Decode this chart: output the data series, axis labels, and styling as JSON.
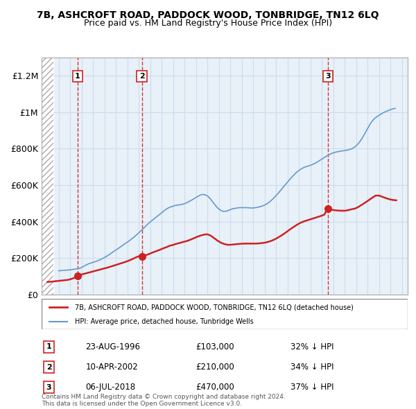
{
  "title": "7B, ASHCROFT ROAD, PADDOCK WOOD, TONBRIDGE, TN12 6LQ",
  "subtitle": "Price paid vs. HM Land Registry's House Price Index (HPI)",
  "hpi_label": "HPI: Average price, detached house, Tunbridge Wells",
  "price_label": "7B, ASHCROFT ROAD, PADDOCK WOOD, TONBRIDGE, TN12 6LQ (detached house)",
  "copyright": "Contains HM Land Registry data © Crown copyright and database right 2024.\nThis data is licensed under the Open Government Licence v3.0.",
  "transactions": [
    {
      "num": 1,
      "date": "23-AUG-1996",
      "year": 1996.64,
      "price": 103000,
      "pct": "32%",
      "dir": "↓"
    },
    {
      "num": 2,
      "date": "10-APR-2002",
      "year": 2002.27,
      "price": 210000,
      "pct": "34%",
      "dir": "↓"
    },
    {
      "num": 3,
      "date": "06-JUL-2018",
      "year": 2018.51,
      "price": 470000,
      "pct": "37%",
      "dir": "↓"
    }
  ],
  "hpi_color": "#6699cc",
  "price_color": "#cc2222",
  "hatch_color": "#cccccc",
  "grid_color": "#ccddee",
  "vline_color": "#cc2222",
  "bg_color": "#e8f0f8",
  "ylim": [
    0,
    1300000
  ],
  "xmin": 1993.5,
  "xmax": 2025.5,
  "hatch_xmax": 1994.5,
  "yticks": [
    0,
    200000,
    400000,
    600000,
    800000,
    1000000,
    1200000
  ],
  "ytick_labels": [
    "£0",
    "£200K",
    "£400K",
    "£600K",
    "£800K",
    "£1M",
    "£1.2M"
  ],
  "hpi_x": [
    1995.0,
    1995.2,
    1995.4,
    1995.6,
    1995.8,
    1996.0,
    1996.2,
    1996.4,
    1996.6,
    1996.8,
    1997.0,
    1997.2,
    1997.4,
    1997.6,
    1997.8,
    1998.0,
    1998.2,
    1998.4,
    1998.6,
    1998.8,
    1999.0,
    1999.2,
    1999.4,
    1999.6,
    1999.8,
    2000.0,
    2000.2,
    2000.4,
    2000.6,
    2000.8,
    2001.0,
    2001.2,
    2001.4,
    2001.6,
    2001.8,
    2002.0,
    2002.2,
    2002.4,
    2002.6,
    2002.8,
    2003.0,
    2003.2,
    2003.4,
    2003.6,
    2003.8,
    2004.0,
    2004.2,
    2004.4,
    2004.6,
    2004.8,
    2005.0,
    2005.2,
    2005.4,
    2005.6,
    2005.8,
    2006.0,
    2006.2,
    2006.4,
    2006.6,
    2006.8,
    2007.0,
    2007.2,
    2007.4,
    2007.6,
    2007.8,
    2008.0,
    2008.2,
    2008.4,
    2008.6,
    2008.8,
    2009.0,
    2009.2,
    2009.4,
    2009.6,
    2009.8,
    2010.0,
    2010.2,
    2010.4,
    2010.6,
    2010.8,
    2011.0,
    2011.2,
    2011.4,
    2011.6,
    2011.8,
    2012.0,
    2012.2,
    2012.4,
    2012.6,
    2012.8,
    2013.0,
    2013.2,
    2013.4,
    2013.6,
    2013.8,
    2014.0,
    2014.2,
    2014.4,
    2014.6,
    2014.8,
    2015.0,
    2015.2,
    2015.4,
    2015.6,
    2015.8,
    2016.0,
    2016.2,
    2016.4,
    2016.6,
    2016.8,
    2017.0,
    2017.2,
    2017.4,
    2017.6,
    2017.8,
    2018.0,
    2018.2,
    2018.4,
    2018.6,
    2018.8,
    2019.0,
    2019.2,
    2019.4,
    2019.6,
    2019.8,
    2020.0,
    2020.2,
    2020.4,
    2020.6,
    2020.8,
    2021.0,
    2021.2,
    2021.4,
    2021.6,
    2021.8,
    2022.0,
    2022.2,
    2022.4,
    2022.6,
    2022.8,
    2023.0,
    2023.2,
    2023.4,
    2023.6,
    2023.8,
    2024.0,
    2024.2,
    2024.4
  ],
  "hpi_y": [
    130000,
    131000,
    132000,
    133000,
    134000,
    135000,
    137000,
    139000,
    141000,
    143000,
    148000,
    155000,
    162000,
    168000,
    172000,
    176000,
    180000,
    185000,
    190000,
    196000,
    203000,
    210000,
    218000,
    227000,
    236000,
    244000,
    252000,
    261000,
    270000,
    279000,
    287000,
    296000,
    306000,
    316000,
    327000,
    338000,
    350000,
    362000,
    374000,
    387000,
    398000,
    408000,
    418000,
    428000,
    438000,
    448000,
    458000,
    468000,
    475000,
    480000,
    484000,
    488000,
    490000,
    492000,
    494000,
    498000,
    503000,
    510000,
    517000,
    524000,
    532000,
    539000,
    546000,
    548000,
    546000,
    540000,
    528000,
    512000,
    496000,
    480000,
    468000,
    460000,
    455000,
    456000,
    460000,
    465000,
    470000,
    472000,
    474000,
    476000,
    476000,
    476000,
    476000,
    475000,
    474000,
    474000,
    476000,
    478000,
    481000,
    485000,
    490000,
    497000,
    506000,
    517000,
    529000,
    542000,
    556000,
    571000,
    586000,
    601000,
    616000,
    631000,
    645000,
    658000,
    670000,
    680000,
    688000,
    695000,
    700000,
    704000,
    708000,
    713000,
    719000,
    726000,
    734000,
    742000,
    750000,
    758000,
    765000,
    771000,
    776000,
    780000,
    783000,
    785000,
    787000,
    789000,
    791000,
    794000,
    798000,
    805000,
    815000,
    828000,
    845000,
    865000,
    887000,
    910000,
    932000,
    950000,
    964000,
    974000,
    982000,
    990000,
    997000,
    1003000,
    1008000,
    1013000,
    1017000,
    1020000
  ],
  "price_x": [
    1994.0,
    1994.3,
    1994.6,
    1994.9,
    1995.2,
    1995.5,
    1995.8,
    1996.1,
    1996.4,
    1996.64,
    1996.9,
    1997.2,
    1997.5,
    1997.8,
    1998.1,
    1998.4,
    1998.7,
    1999.0,
    1999.3,
    1999.6,
    1999.9,
    2000.2,
    2000.5,
    2000.8,
    2001.1,
    2001.4,
    2001.7,
    2002.0,
    2002.27,
    2002.6,
    2002.9,
    2003.2,
    2003.5,
    2003.8,
    2004.1,
    2004.4,
    2004.7,
    2005.0,
    2005.3,
    2005.6,
    2005.9,
    2006.2,
    2006.5,
    2006.8,
    2007.1,
    2007.4,
    2007.7,
    2008.0,
    2008.3,
    2008.6,
    2008.9,
    2009.2,
    2009.5,
    2009.8,
    2010.1,
    2010.4,
    2010.7,
    2011.0,
    2011.3,
    2011.6,
    2011.9,
    2012.2,
    2012.5,
    2012.8,
    2013.1,
    2013.4,
    2013.7,
    2014.0,
    2014.3,
    2014.6,
    2014.9,
    2015.2,
    2015.5,
    2015.8,
    2016.1,
    2016.4,
    2016.7,
    2017.0,
    2017.3,
    2017.6,
    2017.9,
    2018.2,
    2018.51,
    2018.8,
    2019.1,
    2019.4,
    2019.7,
    2020.0,
    2020.3,
    2020.6,
    2020.9,
    2021.2,
    2021.5,
    2021.8,
    2022.1,
    2022.4,
    2022.7,
    2023.0,
    2023.3,
    2023.6,
    2023.9,
    2024.2,
    2024.5
  ],
  "price_y": [
    68000,
    70000,
    72000,
    74000,
    76000,
    78000,
    80000,
    85000,
    92000,
    103000,
    108000,
    113000,
    118000,
    123000,
    128000,
    133000,
    138000,
    143000,
    148000,
    154000,
    160000,
    166000,
    172000,
    178000,
    185000,
    193000,
    202000,
    210000,
    210000,
    215000,
    222000,
    230000,
    237000,
    244000,
    252000,
    259000,
    267000,
    272000,
    278000,
    283000,
    288000,
    293000,
    300000,
    308000,
    316000,
    323000,
    328000,
    330000,
    322000,
    308000,
    294000,
    283000,
    276000,
    272000,
    273000,
    275000,
    277000,
    278000,
    279000,
    279000,
    279000,
    279000,
    280000,
    282000,
    285000,
    290000,
    297000,
    306000,
    317000,
    329000,
    342000,
    356000,
    369000,
    381000,
    392000,
    400000,
    406000,
    412000,
    418000,
    424000,
    430000,
    437000,
    470000,
    465000,
    462000,
    460000,
    459000,
    459000,
    462000,
    467000,
    471000,
    480000,
    492000,
    504000,
    517000,
    530000,
    542000,
    542000,
    535000,
    528000,
    522000,
    518000,
    516000
  ]
}
